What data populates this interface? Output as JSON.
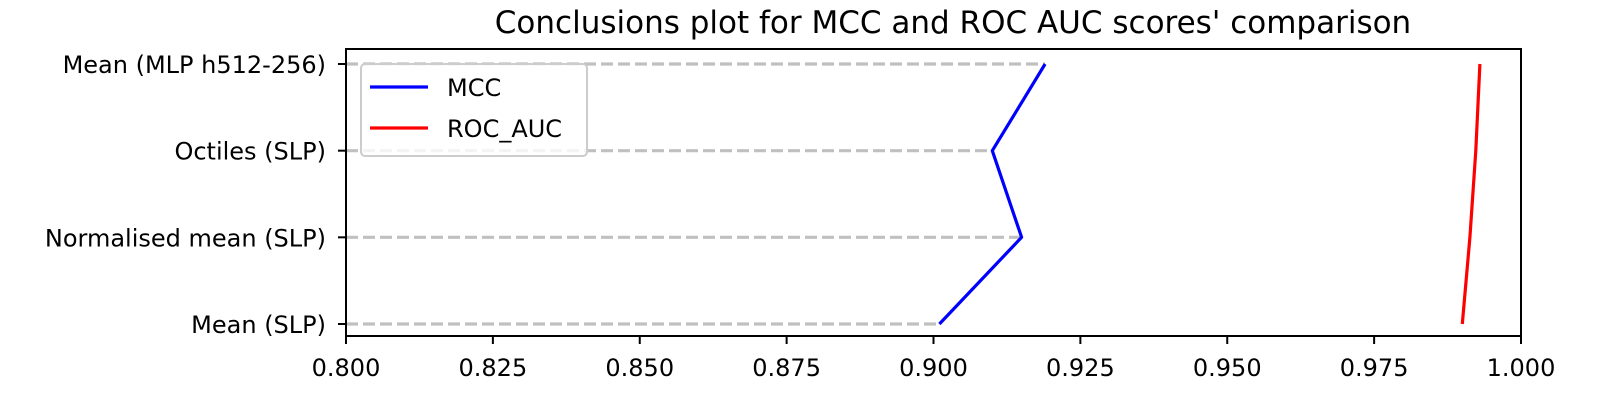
{
  "chart_data": {
    "type": "line",
    "orientation": "horizontal",
    "title": "Conclusions plot for MCC and ROC AUC scores' comparison",
    "xlabel": "",
    "ylabel": "",
    "xlim": [
      0.8,
      1.0
    ],
    "xticks": [
      "0.800",
      "0.825",
      "0.850",
      "0.875",
      "0.900",
      "0.925",
      "0.950",
      "0.975",
      "1.000"
    ],
    "categories": [
      "Mean (SLP)",
      "Normalised mean (SLP)",
      "Octiles (SLP)",
      "Mean (MLP h512-256)"
    ],
    "series": [
      {
        "name": "MCC",
        "color": "#0000ff",
        "values": [
          0.901,
          0.915,
          0.91,
          0.919
        ]
      },
      {
        "name": "ROC_AUC",
        "color": "#ff0000",
        "values": [
          0.99,
          0.9913,
          0.9923,
          0.993
        ]
      }
    ],
    "guide_lines": {
      "style": "dashed",
      "color": "#c0c0c0",
      "extends_to": "MCC"
    },
    "legend": {
      "position": "upper-left"
    },
    "grid": false
  }
}
